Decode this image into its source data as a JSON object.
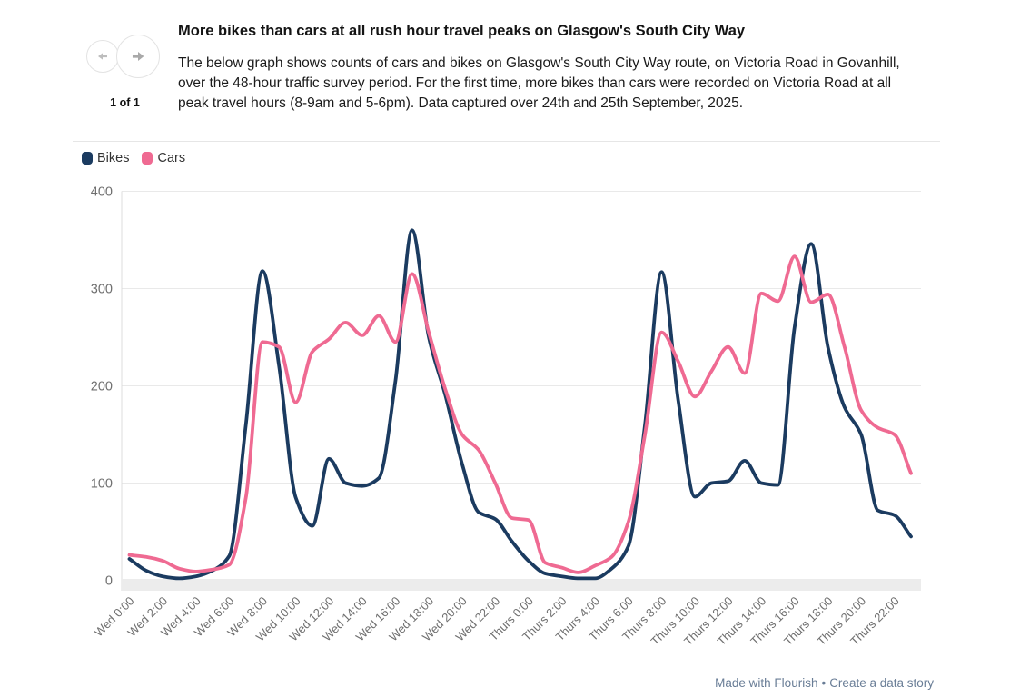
{
  "header": {
    "pagination": "1 of 1"
  },
  "chart_data": {
    "type": "line",
    "title": "More bikes than cars at all rush hour travel peaks on Glasgow's South City Way",
    "subtitle": "The below graph shows counts of cars and bikes on Glasgow's South City Way route, on Victoria Road in Govanhill, over the 48-hour traffic survey period. For the first time, more bikes than cars were recorded on Victoria Road at all peak travel hours (8-9am and 5-6pm). Data captured over 24th and 25th September, 2025.",
    "x": [
      "Wed 0:00",
      "Wed 1:00",
      "Wed 2:00",
      "Wed 3:00",
      "Wed 4:00",
      "Wed 5:00",
      "Wed 6:00",
      "Wed 7:00",
      "Wed 8:00",
      "Wed 9:00",
      "Wed 10:00",
      "Wed 11:00",
      "Wed 12:00",
      "Wed 13:00",
      "Wed 14:00",
      "Wed 15:00",
      "Wed 16:00",
      "Wed 17:00",
      "Wed 18:00",
      "Wed 19:00",
      "Wed 20:00",
      "Wed 21:00",
      "Wed 22:00",
      "Wed 23:00",
      "Thurs 0:00",
      "Thurs 1:00",
      "Thurs 2:00",
      "Thurs 3:00",
      "Thurs 4:00",
      "Thurs 5:00",
      "Thurs 6:00",
      "Thurs 7:00",
      "Thurs 8:00",
      "Thurs 9:00",
      "Thurs 10:00",
      "Thurs 11:00",
      "Thurs 12:00",
      "Thurs 13:00",
      "Thurs 14:00",
      "Thurs 15:00",
      "Thurs 16:00",
      "Thurs 17:00",
      "Thurs 18:00",
      "Thurs 19:00",
      "Thurs 20:00",
      "Thurs 21:00",
      "Thurs 22:00",
      "Thurs 23:00"
    ],
    "x_tick_step": 2,
    "series": [
      {
        "name": "Bikes",
        "color": "#1b3b60",
        "values": [
          22,
          10,
          4,
          2,
          4,
          10,
          25,
          160,
          318,
          220,
          85,
          56,
          125,
          100,
          97,
          105,
          205,
          360,
          250,
          190,
          120,
          70,
          63,
          40,
          20,
          7,
          4,
          2,
          2,
          12,
          35,
          160,
          317,
          185,
          86,
          100,
          102,
          123,
          100,
          98,
          260,
          346,
          240,
          178,
          150,
          72,
          67,
          45
        ]
      },
      {
        "name": "Cars",
        "color": "#ef6a92",
        "values": [
          26,
          24,
          20,
          12,
          9,
          11,
          16,
          85,
          245,
          240,
          183,
          235,
          248,
          265,
          252,
          272,
          245,
          315,
          255,
          196,
          150,
          134,
          100,
          64,
          62,
          18,
          13,
          8,
          15,
          24,
          60,
          150,
          255,
          225,
          189,
          215,
          240,
          213,
          295,
          287,
          333,
          286,
          294,
          240,
          175,
          157,
          150,
          110
        ]
      }
    ],
    "ylim": [
      0,
      400
    ],
    "yticks": [
      0,
      100,
      200,
      300,
      400
    ],
    "grid": "horizontal",
    "legend_position": "top-left"
  },
  "footer": {
    "credit": "Made with Flourish",
    "separator": "•",
    "cta": "Create a data story"
  }
}
